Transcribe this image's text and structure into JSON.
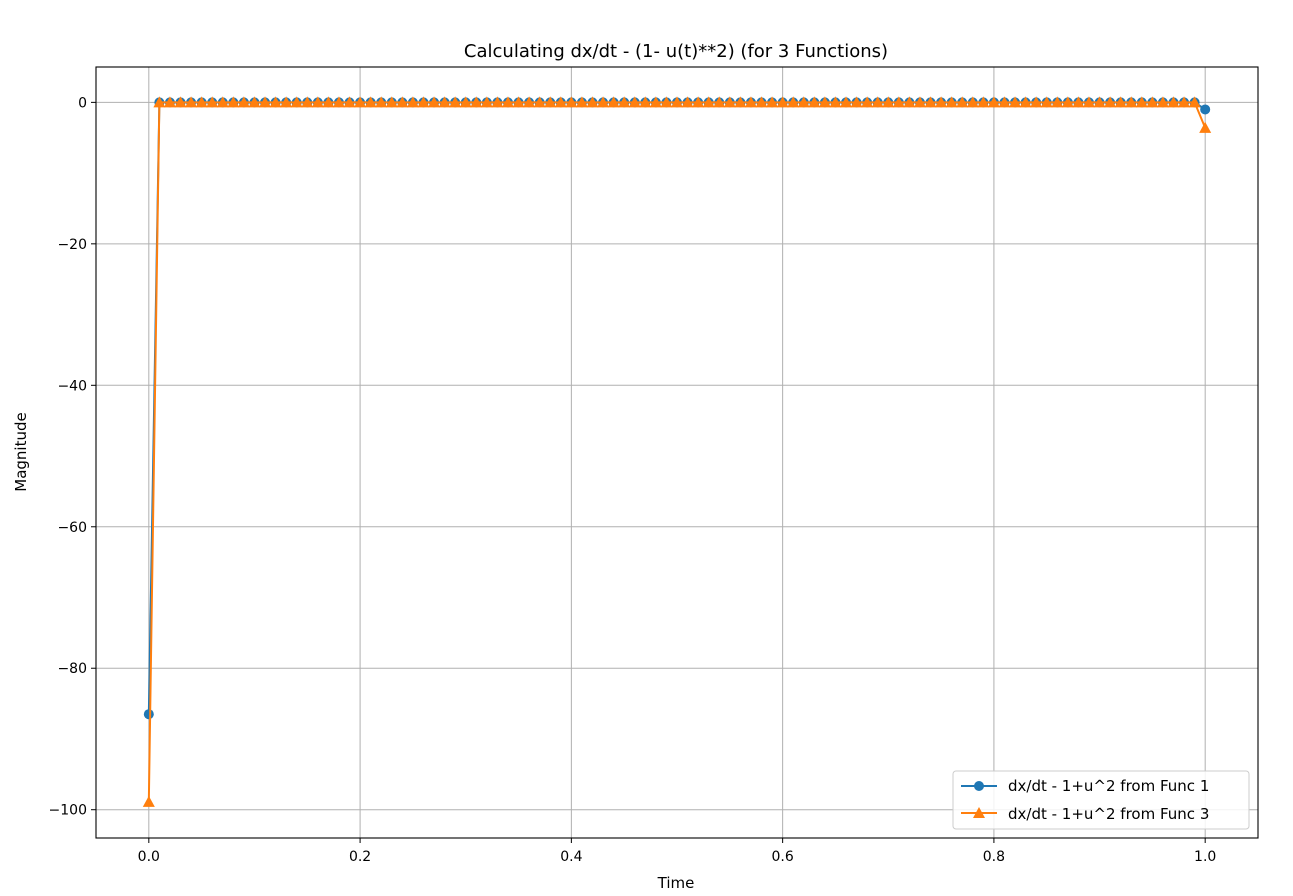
{
  "chart_data": {
    "type": "line",
    "title": "Calculating dx/dt - (1- u(t)**2) (for 3 Functions)",
    "xlabel": "Time",
    "ylabel": "Magnitude",
    "xlim": [
      -0.05,
      1.05
    ],
    "ylim": [
      -104,
      5
    ],
    "xticks": [
      0.0,
      0.2,
      0.4,
      0.6,
      0.8,
      1.0
    ],
    "xtick_labels": [
      "0.0",
      "0.2",
      "0.4",
      "0.6",
      "0.8",
      "1.0"
    ],
    "yticks": [
      0,
      -20,
      -40,
      -60,
      -80,
      -100
    ],
    "ytick_labels": [
      "0",
      "−20",
      "−40",
      "−60",
      "−80",
      "−100"
    ],
    "grid": true,
    "legend_position": "lower-right",
    "sample_count": 101,
    "x_start": 0.0,
    "x_end": 1.0,
    "series": [
      {
        "name": "dx/dt - 1+u^2 from Func 1",
        "color": "#1f77b4",
        "marker": "circle",
        "first_value": -86.5,
        "interior_value": 0.0,
        "last_value": -1.0
      },
      {
        "name": "dx/dt - 1+u^2 from Func 3",
        "color": "#ff7f0e",
        "marker": "triangle",
        "first_value": -98.9,
        "interior_value": 0.0,
        "last_value": -3.6
      }
    ]
  }
}
